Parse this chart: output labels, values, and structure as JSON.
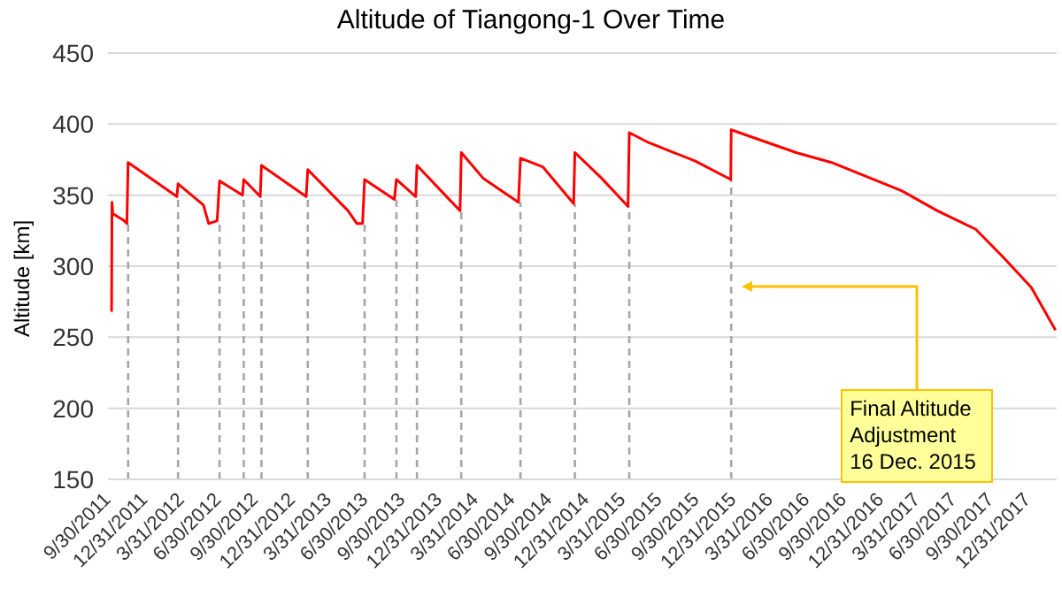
{
  "chart_data": {
    "type": "line",
    "title": "Altitude of Tiangong-1 Over Time",
    "ylabel": "Altitude [km]",
    "x": [
      "2011-09-30",
      "2011-10-01",
      "2011-10-03",
      "2011-10-31",
      "2011-11-07",
      "2011-11-10",
      "2012-03-10",
      "2012-03-13",
      "2012-05-15",
      "2012-05-28",
      "2012-06-18",
      "2012-06-24",
      "2012-08-20",
      "2012-08-23",
      "2012-10-03",
      "2012-10-06",
      "2013-01-25",
      "2013-01-29",
      "2013-05-09",
      "2013-05-31",
      "2013-06-14",
      "2013-06-19",
      "2013-09-01",
      "2013-09-06",
      "2013-10-24",
      "2013-10-27",
      "2014-02-11",
      "2014-02-14",
      "2014-04-09",
      "2014-07-06",
      "2014-07-11",
      "2014-09-04",
      "2014-11-20",
      "2014-11-23",
      "2015-01-28",
      "2015-04-04",
      "2015-04-07",
      "2015-05-25",
      "2015-09-18",
      "2015-12-15",
      "2015-12-16",
      "2016-05-25",
      "2016-08-21",
      "2017-02-12",
      "2017-05-11",
      "2017-08-14",
      "2017-10-19",
      "2017-12-30",
      "2018-02-28"
    ],
    "series": [
      {
        "color": "#ff0000",
        "values": [
          268,
          345,
          337,
          332,
          330,
          373,
          349,
          358,
          343,
          330,
          332,
          360,
          350,
          361,
          349,
          371,
          349,
          368,
          339,
          330,
          330,
          361,
          347,
          361,
          349,
          371,
          339,
          380,
          362,
          345,
          376,
          370,
          344,
          380,
          362,
          342,
          394,
          387,
          374,
          361,
          396,
          380,
          373,
          353,
          339,
          326,
          307,
          285,
          255
        ]
      }
    ],
    "xlim": [
      "2011-09-21",
      "2018-03-03"
    ],
    "xticks": [
      {
        "value": "2011-09-30",
        "label": "9/30/2011"
      },
      {
        "value": "2011-12-31",
        "label": "12/31/2011"
      },
      {
        "value": "2012-03-31",
        "label": "3/31/2012"
      },
      {
        "value": "2012-06-30",
        "label": "6/30/2012"
      },
      {
        "value": "2012-09-30",
        "label": "9/30/2012"
      },
      {
        "value": "2012-12-31",
        "label": "12/31/2012"
      },
      {
        "value": "2013-03-31",
        "label": "3/31/2013"
      },
      {
        "value": "2013-06-30",
        "label": "6/30/2013"
      },
      {
        "value": "2013-09-30",
        "label": "9/30/2013"
      },
      {
        "value": "2013-12-31",
        "label": "12/31/2013"
      },
      {
        "value": "2014-03-31",
        "label": "3/31/2014"
      },
      {
        "value": "2014-06-30",
        "label": "6/30/2014"
      },
      {
        "value": "2014-09-30",
        "label": "9/30/2014"
      },
      {
        "value": "2014-12-31",
        "label": "12/31/2014"
      },
      {
        "value": "2015-03-31",
        "label": "3/31/2015"
      },
      {
        "value": "2015-06-30",
        "label": "6/30/2015"
      },
      {
        "value": "2015-09-30",
        "label": "9/30/2015"
      },
      {
        "value": "2015-12-31",
        "label": "12/31/2015"
      },
      {
        "value": "2016-03-31",
        "label": "3/31/2016"
      },
      {
        "value": "2016-06-30",
        "label": "6/30/2016"
      },
      {
        "value": "2016-09-30",
        "label": "9/30/2016"
      },
      {
        "value": "2016-12-31",
        "label": "12/31/2016"
      },
      {
        "value": "2017-03-31",
        "label": "3/31/2017"
      },
      {
        "value": "2017-06-30",
        "label": "6/30/2017"
      },
      {
        "value": "2017-09-30",
        "label": "9/30/2017"
      },
      {
        "value": "2017-12-31",
        "label": "12/31/2017"
      }
    ],
    "ylim": [
      150,
      450
    ],
    "yticks": [
      150,
      200,
      250,
      300,
      350,
      400,
      450
    ],
    "grid": "y",
    "marker": "none",
    "line_style": "solid",
    "ref_lines": [
      {
        "axis": "x",
        "value": "2011-11-10",
        "color": "#a6a6a6",
        "line_style": "dashed"
      },
      {
        "axis": "x",
        "value": "2012-03-13",
        "color": "#a6a6a6",
        "line_style": "dashed"
      },
      {
        "axis": "x",
        "value": "2012-06-24",
        "color": "#a6a6a6",
        "line_style": "dashed"
      },
      {
        "axis": "x",
        "value": "2012-08-23",
        "color": "#a6a6a6",
        "line_style": "dashed"
      },
      {
        "axis": "x",
        "value": "2012-10-06",
        "color": "#a6a6a6",
        "line_style": "dashed"
      },
      {
        "axis": "x",
        "value": "2013-01-29",
        "color": "#a6a6a6",
        "line_style": "dashed"
      },
      {
        "axis": "x",
        "value": "2013-06-19",
        "color": "#a6a6a6",
        "line_style": "dashed"
      },
      {
        "axis": "x",
        "value": "2013-09-06",
        "color": "#a6a6a6",
        "line_style": "dashed"
      },
      {
        "axis": "x",
        "value": "2013-10-27",
        "color": "#a6a6a6",
        "line_style": "dashed"
      },
      {
        "axis": "x",
        "value": "2014-02-14",
        "color": "#a6a6a6",
        "line_style": "dashed"
      },
      {
        "axis": "x",
        "value": "2014-07-11",
        "color": "#a6a6a6",
        "line_style": "dashed"
      },
      {
        "axis": "x",
        "value": "2014-11-23",
        "color": "#a6a6a6",
        "line_style": "dashed"
      },
      {
        "axis": "x",
        "value": "2015-04-07",
        "color": "#a6a6a6",
        "line_style": "dashed"
      },
      {
        "axis": "x",
        "value": "2015-12-16",
        "color": "#a6a6a6",
        "line_style": "dashed"
      }
    ],
    "annotations": [
      "Final Altitude\nAdjustment\n16 Dec. 2015"
    ]
  }
}
